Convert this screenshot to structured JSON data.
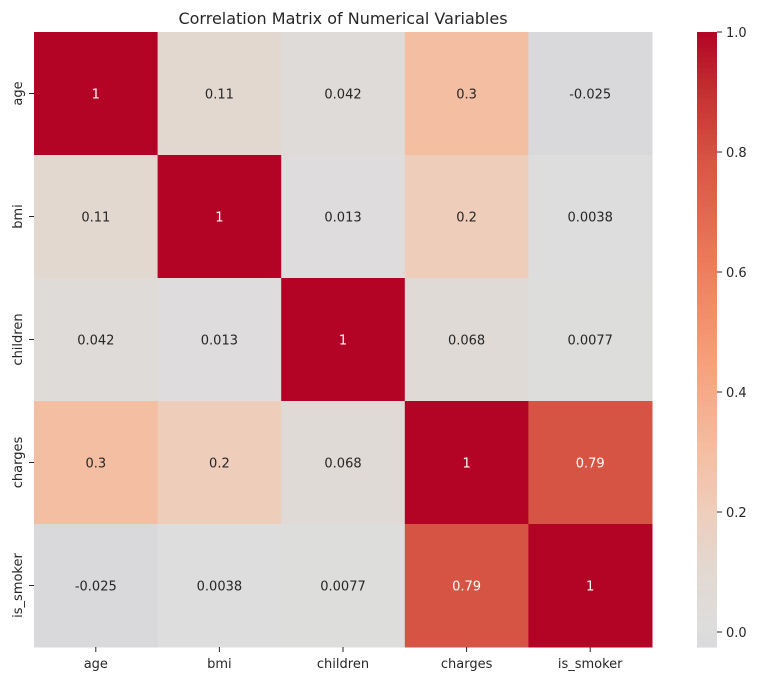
{
  "chart_data": {
    "type": "heatmap",
    "title": "Correlation Matrix of Numerical Variables",
    "xlabel": "",
    "ylabel": "",
    "x_categories": [
      "age",
      "bmi",
      "children",
      "charges",
      "is_smoker"
    ],
    "y_categories": [
      "age",
      "bmi",
      "children",
      "charges",
      "is_smoker"
    ],
    "values": [
      [
        1,
        0.11,
        0.042,
        0.3,
        -0.025
      ],
      [
        0.11,
        1,
        0.013,
        0.2,
        0.0038
      ],
      [
        0.042,
        0.013,
        1,
        0.068,
        0.0077
      ],
      [
        0.3,
        0.2,
        0.068,
        1,
        0.79
      ],
      [
        -0.025,
        0.0038,
        0.0077,
        0.79,
        1
      ]
    ],
    "cell_labels": [
      [
        "1",
        "0.11",
        "0.042",
        "0.3",
        "-0.025"
      ],
      [
        "0.11",
        "1",
        "0.013",
        "0.2",
        "0.0038"
      ],
      [
        "0.042",
        "0.013",
        "1",
        "0.068",
        "0.0077"
      ],
      [
        "0.3",
        "0.2",
        "0.068",
        "1",
        "0.79"
      ],
      [
        "-0.025",
        "0.0038",
        "0.0077",
        "0.79",
        "1"
      ]
    ],
    "colormap": "coolwarm",
    "color_range": [
      -0.025,
      1.0
    ],
    "colorbar": {
      "ticks": [
        0.0,
        0.2,
        0.4,
        0.6,
        0.8,
        1.0
      ],
      "tick_labels": [
        "0.0",
        "0.2",
        "0.4",
        "0.6",
        "0.8",
        "1.0"
      ]
    },
    "annotation_colors": {
      "dark_text": "#262626",
      "light_text": "#ffffff"
    }
  }
}
